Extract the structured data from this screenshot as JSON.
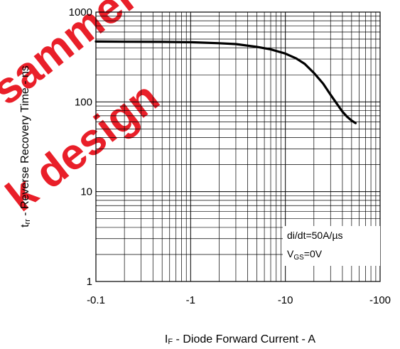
{
  "watermark": {
    "lines": [
      "sammer",
      "k design"
    ],
    "color": "#e8141e"
  },
  "chart_data": {
    "type": "line",
    "xlabel": "IF - Diode Forward Current - A",
    "ylabel": "trr - Reverse Recovery Time - ns",
    "xscale": "log",
    "yscale": "log",
    "xlim": [
      -0.1,
      -100
    ],
    "ylim": [
      1,
      1000
    ],
    "grid": true,
    "x_tick_labels": [
      "-0.1",
      "-1",
      "-10",
      "-100"
    ],
    "y_tick_labels": [
      "1",
      "10",
      "100",
      "1000"
    ],
    "series": [
      {
        "x": [
          -0.1,
          -0.2,
          -0.5,
          -1,
          -2,
          -3,
          -5,
          -7,
          -10,
          -13,
          -16,
          -20,
          -25,
          -30,
          -35,
          -40,
          -45,
          -50,
          -55
        ],
        "y": [
          470,
          468,
          466,
          462,
          450,
          440,
          410,
          385,
          345,
          305,
          265,
          210,
          160,
          120,
          95,
          78,
          68,
          62,
          58
        ]
      }
    ],
    "annotations": {
      "line1": "di/dt=50A/µs",
      "line2_main": "V",
      "line2_sub": "GS",
      "line2_rest": "=0V"
    },
    "ylabel_parts": {
      "main": "t",
      "sub": "rr",
      "rest": " - Reverse Recovery Time - ns"
    },
    "xlabel_parts": {
      "main": "I",
      "sub": "F",
      "rest": " - Diode Forward Current - A"
    }
  }
}
